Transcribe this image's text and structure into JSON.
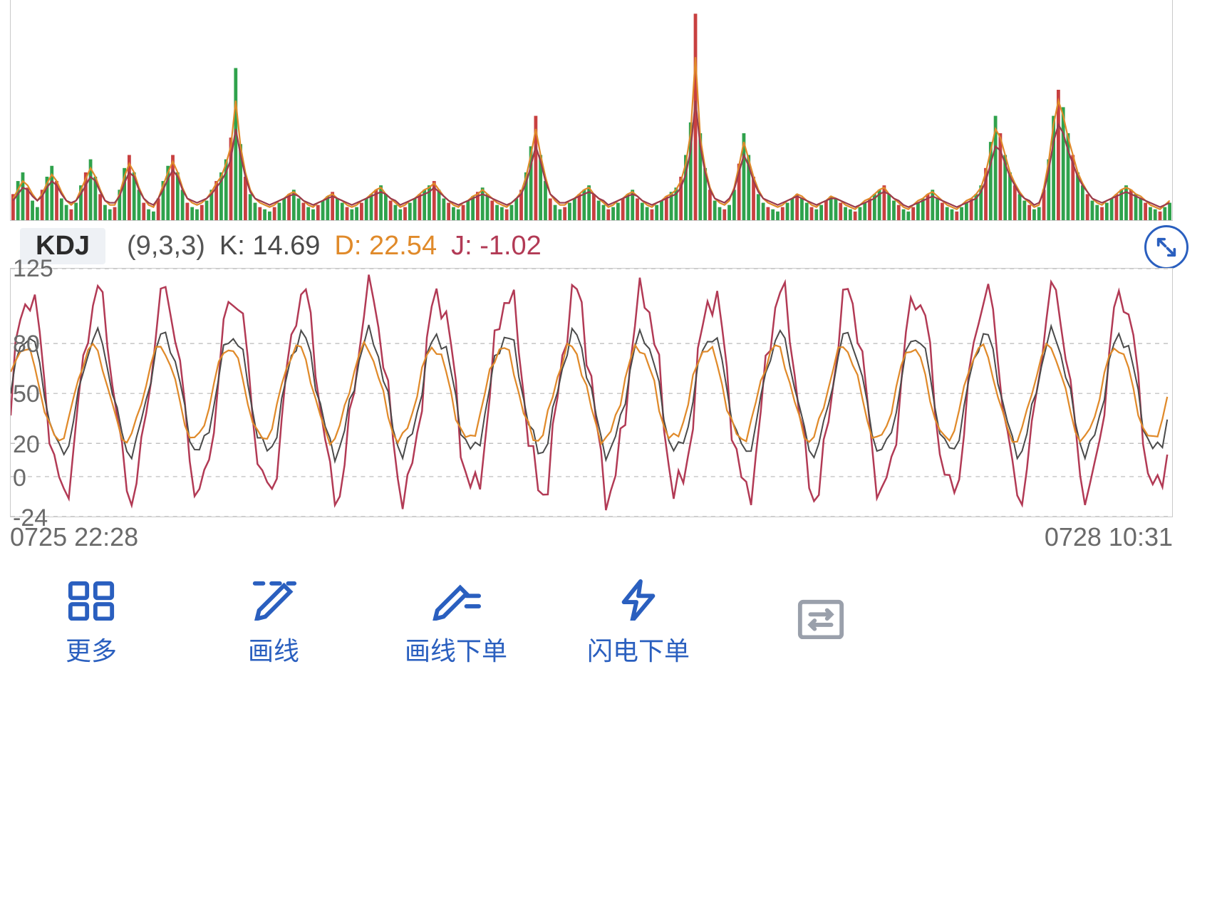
{
  "volume_chart": {
    "type": "bar+line",
    "bar_up_color": "#2fa24c",
    "bar_down_color": "#c84040",
    "ma1_color": "#e08a2a",
    "ma2_color": "#9a3b4d",
    "background_color": "#ffffff",
    "border_color": "#c9c9c9",
    "n": 240,
    "max": 100,
    "bars": [
      12,
      18,
      22,
      15,
      9,
      6,
      14,
      20,
      25,
      18,
      10,
      7,
      5,
      8,
      16,
      22,
      28,
      20,
      12,
      7,
      5,
      6,
      14,
      24,
      30,
      22,
      14,
      8,
      5,
      4,
      10,
      18,
      25,
      30,
      22,
      14,
      8,
      6,
      5,
      7,
      9,
      14,
      18,
      22,
      28,
      38,
      70,
      35,
      20,
      12,
      8,
      6,
      5,
      4,
      6,
      8,
      10,
      12,
      14,
      10,
      8,
      6,
      5,
      7,
      9,
      11,
      13,
      10,
      8,
      6,
      5,
      6,
      8,
      10,
      12,
      14,
      16,
      12,
      9,
      7,
      5,
      6,
      8,
      10,
      12,
      14,
      16,
      18,
      14,
      10,
      8,
      6,
      5,
      7,
      9,
      11,
      13,
      15,
      12,
      9,
      7,
      6,
      5,
      7,
      10,
      14,
      22,
      34,
      48,
      30,
      18,
      10,
      7,
      5,
      6,
      8,
      10,
      12,
      14,
      16,
      12,
      9,
      7,
      5,
      6,
      8,
      10,
      12,
      14,
      10,
      8,
      6,
      5,
      7,
      9,
      11,
      13,
      15,
      20,
      30,
      45,
      95,
      40,
      24,
      14,
      9,
      6,
      5,
      7,
      14,
      26,
      40,
      30,
      20,
      12,
      8,
      6,
      5,
      4,
      6,
      8,
      10,
      12,
      10,
      8,
      6,
      5,
      7,
      9,
      11,
      10,
      8,
      6,
      5,
      4,
      6,
      8,
      10,
      12,
      14,
      16,
      12,
      9,
      7,
      5,
      4,
      6,
      8,
      10,
      12,
      14,
      10,
      8,
      6,
      5,
      4,
      6,
      8,
      10,
      12,
      16,
      24,
      36,
      48,
      40,
      30,
      22,
      16,
      12,
      9,
      7,
      5,
      6,
      14,
      28,
      48,
      60,
      52,
      40,
      30,
      22,
      16,
      12,
      9,
      7,
      6,
      8,
      10,
      12,
      14,
      16,
      14,
      12,
      10,
      8,
      6,
      5,
      4,
      6,
      8
    ],
    "ma1": [
      10,
      14,
      18,
      16,
      12,
      9,
      12,
      17,
      21,
      18,
      13,
      9,
      7,
      9,
      14,
      19,
      24,
      20,
      14,
      9,
      7,
      7,
      12,
      20,
      26,
      22,
      15,
      10,
      7,
      6,
      10,
      16,
      22,
      27,
      22,
      15,
      10,
      8,
      7,
      8,
      10,
      13,
      17,
      20,
      26,
      34,
      55,
      34,
      22,
      14,
      10,
      8,
      7,
      6,
      7,
      9,
      10,
      12,
      13,
      11,
      9,
      7,
      6,
      8,
      9,
      11,
      12,
      10,
      9,
      7,
      6,
      7,
      9,
      10,
      12,
      14,
      15,
      12,
      10,
      8,
      6,
      7,
      9,
      10,
      12,
      14,
      15,
      17,
      14,
      11,
      9,
      7,
      6,
      8,
      9,
      11,
      12,
      14,
      12,
      10,
      8,
      7,
      6,
      8,
      10,
      13,
      20,
      30,
      42,
      30,
      20,
      12,
      9,
      7,
      7,
      9,
      10,
      12,
      14,
      15,
      12,
      10,
      8,
      6,
      7,
      9,
      10,
      12,
      13,
      11,
      9,
      7,
      6,
      8,
      9,
      11,
      12,
      14,
      18,
      26,
      40,
      75,
      38,
      24,
      15,
      10,
      8,
      7,
      9,
      15,
      25,
      36,
      28,
      20,
      14,
      10,
      8,
      7,
      6,
      7,
      9,
      10,
      12,
      11,
      9,
      7,
      6,
      8,
      9,
      11,
      10,
      9,
      7,
      6,
      5,
      7,
      9,
      10,
      12,
      14,
      15,
      12,
      10,
      8,
      6,
      5,
      7,
      9,
      10,
      12,
      13,
      11,
      9,
      7,
      6,
      5,
      7,
      9,
      10,
      12,
      15,
      22,
      32,
      42,
      38,
      30,
      22,
      17,
      13,
      10,
      8,
      6,
      7,
      15,
      27,
      44,
      55,
      48,
      38,
      30,
      22,
      17,
      13,
      10,
      8,
      7,
      9,
      10,
      12,
      14,
      15,
      14,
      12,
      11,
      9,
      7,
      6,
      5,
      7,
      9
    ],
    "ma2": [
      9,
      12,
      15,
      14,
      11,
      9,
      11,
      15,
      18,
      16,
      12,
      9,
      8,
      9,
      12,
      16,
      20,
      18,
      13,
      9,
      8,
      8,
      11,
      17,
      22,
      20,
      14,
      10,
      8,
      7,
      10,
      14,
      19,
      23,
      20,
      14,
      10,
      9,
      8,
      9,
      10,
      12,
      15,
      18,
      22,
      28,
      42,
      30,
      20,
      13,
      10,
      9,
      8,
      7,
      8,
      9,
      10,
      11,
      12,
      11,
      9,
      8,
      7,
      8,
      9,
      10,
      11,
      10,
      9,
      8,
      7,
      8,
      9,
      10,
      11,
      12,
      13,
      12,
      10,
      9,
      7,
      8,
      9,
      10,
      11,
      12,
      13,
      15,
      13,
      11,
      9,
      8,
      7,
      8,
      9,
      10,
      11,
      12,
      11,
      10,
      9,
      8,
      7,
      8,
      10,
      12,
      17,
      25,
      34,
      27,
      18,
      12,
      10,
      8,
      8,
      9,
      10,
      11,
      12,
      13,
      12,
      10,
      9,
      7,
      8,
      9,
      10,
      11,
      12,
      11,
      9,
      8,
      7,
      8,
      9,
      10,
      11,
      12,
      15,
      21,
      32,
      55,
      34,
      22,
      14,
      10,
      9,
      8,
      10,
      14,
      22,
      30,
      25,
      18,
      13,
      10,
      9,
      8,
      7,
      8,
      9,
      10,
      11,
      10,
      9,
      8,
      7,
      8,
      9,
      10,
      10,
      9,
      8,
      7,
      6,
      7,
      8,
      9,
      10,
      12,
      13,
      12,
      10,
      9,
      7,
      6,
      7,
      8,
      9,
      10,
      11,
      10,
      9,
      8,
      7,
      6,
      7,
      8,
      9,
      10,
      13,
      18,
      26,
      34,
      32,
      26,
      20,
      16,
      12,
      10,
      9,
      7,
      8,
      13,
      23,
      36,
      44,
      40,
      32,
      26,
      20,
      16,
      13,
      10,
      9,
      8,
      9,
      10,
      11,
      12,
      13,
      12,
      11,
      10,
      9,
      8,
      7,
      6,
      7,
      8
    ]
  },
  "kdj_header": {
    "chip_label": "KDJ",
    "params": "(9,3,3)",
    "k_label": "K: 14.69",
    "d_label": "D: 22.54",
    "j_label": "J: -1.02",
    "k_color": "#4a4a4a",
    "d_color": "#e08a2a",
    "j_color": "#b23a55"
  },
  "kdj_chart": {
    "type": "line",
    "background_color": "#ffffff",
    "border_color": "#c9c9c9",
    "grid_color": "#b8b8b8",
    "grid_dash": "6,6",
    "ylim": [
      -24,
      125
    ],
    "yticks": [
      -24,
      0,
      20,
      50,
      80,
      125
    ],
    "ytick_labels": [
      "-24",
      "0",
      "20",
      "50",
      "80",
      "125"
    ],
    "line_colors": {
      "k": "#4a4a4a",
      "d": "#e08a2a",
      "j": "#b23a55"
    },
    "line_width": 2.5,
    "n": 240,
    "cycles": 17,
    "k_amp": 35,
    "k_mid": 50,
    "d_amp": 28,
    "d_mid": 50,
    "j_amp": 60,
    "j_mid": 50
  },
  "time_axis": {
    "start_label": "0725 22:28",
    "end_label": "0728 10:31",
    "color": "#6a6a6a",
    "fontsize": 36
  },
  "toolbar": {
    "items": [
      {
        "id": "more",
        "label": "更多",
        "icon": "grid"
      },
      {
        "id": "drawline",
        "label": "画线",
        "icon": "pencil-dashed"
      },
      {
        "id": "drawline-order",
        "label": "画线下单",
        "icon": "pencil-lines"
      },
      {
        "id": "flash-order",
        "label": "闪电下单",
        "icon": "bolt"
      },
      {
        "id": "swap",
        "label": "",
        "icon": "swap-box",
        "muted": true
      }
    ],
    "color": "#2a5fbf"
  }
}
